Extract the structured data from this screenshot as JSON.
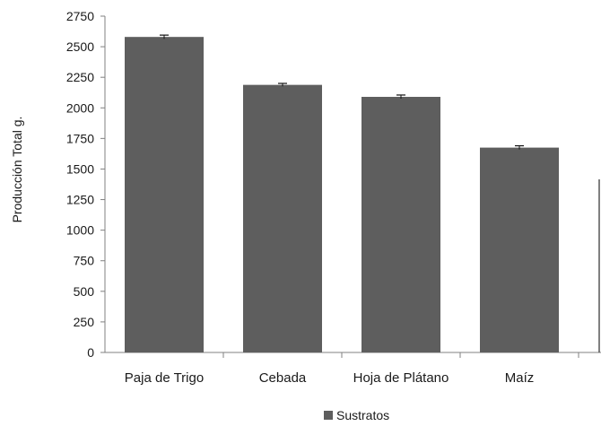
{
  "chart_data": {
    "type": "bar",
    "ylabel": "Producción Total  g.",
    "xlabel": "",
    "ylim": [
      0,
      2750
    ],
    "yticks": [
      "0",
      "250",
      "500",
      "750",
      "1000",
      "1250",
      "1500",
      "1750",
      "2000",
      "2250",
      "2500",
      "2750"
    ],
    "categories": [
      "Paja de Trigo",
      "Cebada",
      "Hoja de Plátano",
      "Maíz"
    ],
    "series": [
      {
        "name": "Sustratos",
        "values": [
          2580,
          2188,
          2090,
          1675
        ],
        "errors": [
          15,
          12,
          15,
          15
        ]
      }
    ],
    "grid": false,
    "legend_position": "bottom",
    "colors": {
      "bar": "#5e5e5e",
      "axis": "#808080",
      "text": "#1a1a1a"
    }
  }
}
